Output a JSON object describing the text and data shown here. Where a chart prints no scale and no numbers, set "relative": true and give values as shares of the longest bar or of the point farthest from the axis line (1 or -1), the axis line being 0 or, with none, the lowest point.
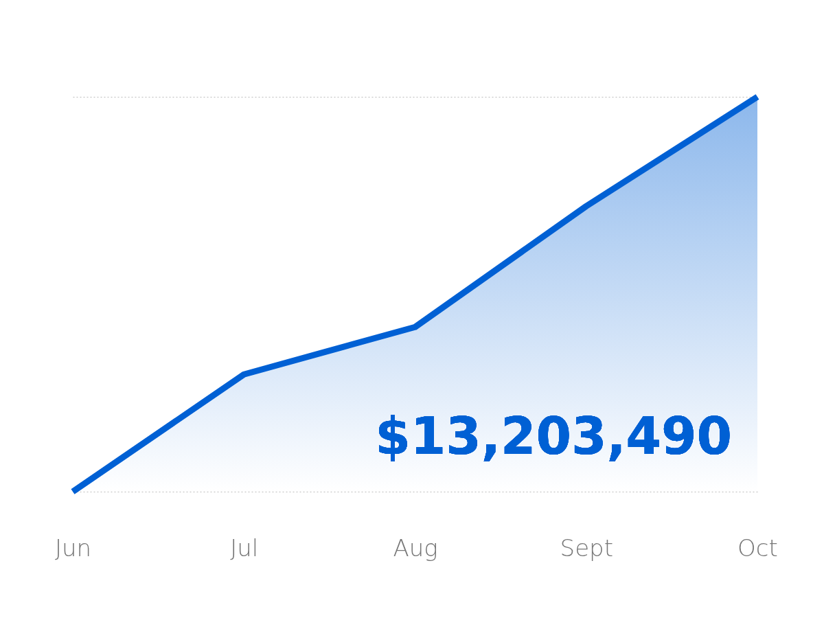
{
  "chart_data": {
    "type": "area",
    "relative": true,
    "categories": [
      "Jun",
      "Jul",
      "Aug",
      "Sept",
      "Oct"
    ],
    "series": [
      {
        "color": "#0060d4",
        "values": [
          0,
          0.297,
          0.417,
          0.723,
          1
        ]
      }
    ],
    "grid": "y",
    "annotations": [
      "$13,203,490"
    ]
  }
}
